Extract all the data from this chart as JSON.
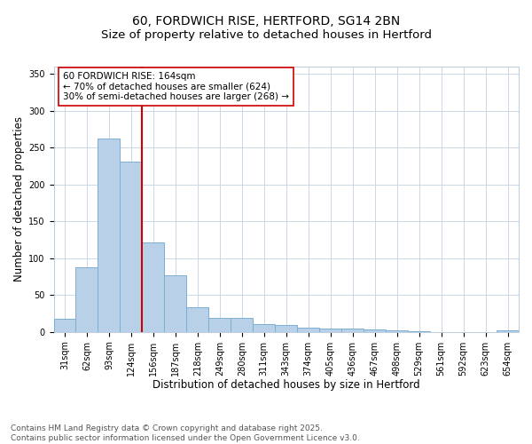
{
  "title_line1": "60, FORDWICH RISE, HERTFORD, SG14 2BN",
  "title_line2": "Size of property relative to detached houses in Hertford",
  "xlabel": "Distribution of detached houses by size in Hertford",
  "ylabel": "Number of detached properties",
  "categories": [
    "31sqm",
    "62sqm",
    "93sqm",
    "124sqm",
    "156sqm",
    "187sqm",
    "218sqm",
    "249sqm",
    "280sqm",
    "311sqm",
    "343sqm",
    "374sqm",
    "405sqm",
    "436sqm",
    "467sqm",
    "498sqm",
    "529sqm",
    "561sqm",
    "592sqm",
    "623sqm",
    "654sqm"
  ],
  "values": [
    18,
    88,
    262,
    231,
    121,
    77,
    33,
    19,
    19,
    10,
    9,
    6,
    5,
    4,
    3,
    2,
    1,
    0,
    0,
    0,
    2
  ],
  "bar_color": "#b8d0e8",
  "bar_edge_color": "#7aafd4",
  "vline_color": "#cc0000",
  "annotation_text": "60 FORDWICH RISE: 164sqm\n← 70% of detached houses are smaller (624)\n30% of semi-detached houses are larger (268) →",
  "annotation_box_color": "#ffffff",
  "annotation_box_edge_color": "#cc0000",
  "ylim": [
    0,
    360
  ],
  "yticks": [
    0,
    50,
    100,
    150,
    200,
    250,
    300,
    350
  ],
  "background_color": "#ffffff",
  "grid_color": "#ccd8e8",
  "footer_line1": "Contains HM Land Registry data © Crown copyright and database right 2025.",
  "footer_line2": "Contains public sector information licensed under the Open Government Licence v3.0.",
  "title_fontsize": 10,
  "subtitle_fontsize": 9.5,
  "axis_label_fontsize": 8.5,
  "tick_fontsize": 7,
  "annotation_fontsize": 7.5,
  "footer_fontsize": 6.5
}
